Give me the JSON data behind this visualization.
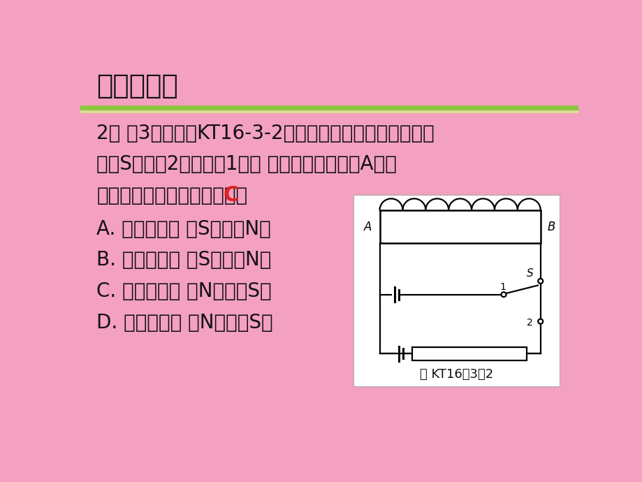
{
  "bg_color": "#F4A0C0",
  "green_bar_color": "#8DC63F",
  "title_text": "课堂小测本",
  "title_fontsize": 28,
  "line1": "2． （3分）如图KT16-3-2所示，两电池的规格一样，当",
  "line2": "开关S由触点2转到触点1时， 螺线管磁性强弱和A端磁",
  "line3": "极极性变化的情况是（　　）",
  "answer_C": "C",
  "optionA": "A. 磁性加强， 由S极变为N极",
  "optionB": "B. 磁性减弱， 由S极变为N极",
  "optionC": "C. 磁性加强， 由N极变为S极",
  "optionD": "D. 磁性减弱， 由N极变为S极",
  "main_fontsize": 20,
  "option_fontsize": 20,
  "diagram_caption": "图 KT16－3－2",
  "diagram_line_color": "#000000"
}
